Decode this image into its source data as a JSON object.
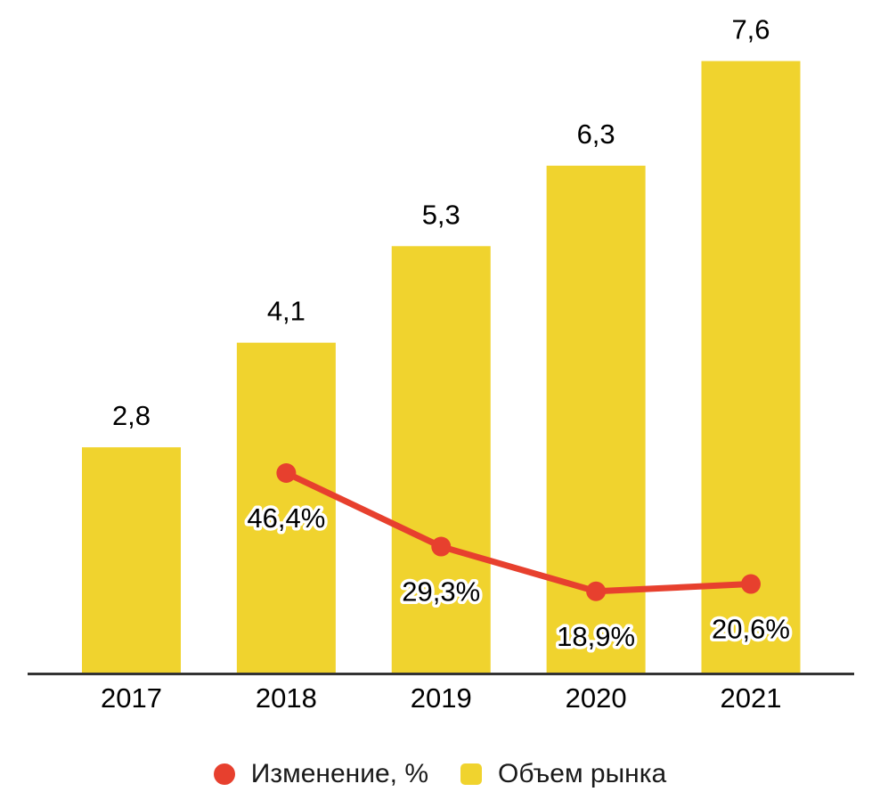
{
  "chart_data": {
    "type": "bar+line",
    "title": "",
    "categories": [
      "2017",
      "2018",
      "2019",
      "2020",
      "2021"
    ],
    "series": [
      {
        "name": "Объем рынка",
        "type": "bar",
        "color": "#F0D32E",
        "values": [
          2.8,
          4.1,
          5.3,
          6.3,
          7.6
        ],
        "labels": [
          "2,8",
          "4,1",
          "5,3",
          "6,3",
          "7,6"
        ],
        "ylim": [
          0,
          7.75
        ]
      },
      {
        "name": "Изменение, %",
        "type": "line",
        "color": "#E7402E",
        "values": [
          null,
          46.4,
          29.3,
          18.9,
          20.6
        ],
        "labels": [
          null,
          "46,4%",
          "29,3%",
          "18,9%",
          "20,6%"
        ],
        "ylim": [
          0,
          145
        ]
      }
    ],
    "axis_color": "#333333",
    "grid": false,
    "legend_position": "bottom"
  },
  "legend": {
    "items": [
      {
        "label": "Изменение, %",
        "color": "#E7402E",
        "shape": "circle"
      },
      {
        "label": "Объем рынка",
        "color": "#F0D32E",
        "shape": "square"
      }
    ]
  }
}
